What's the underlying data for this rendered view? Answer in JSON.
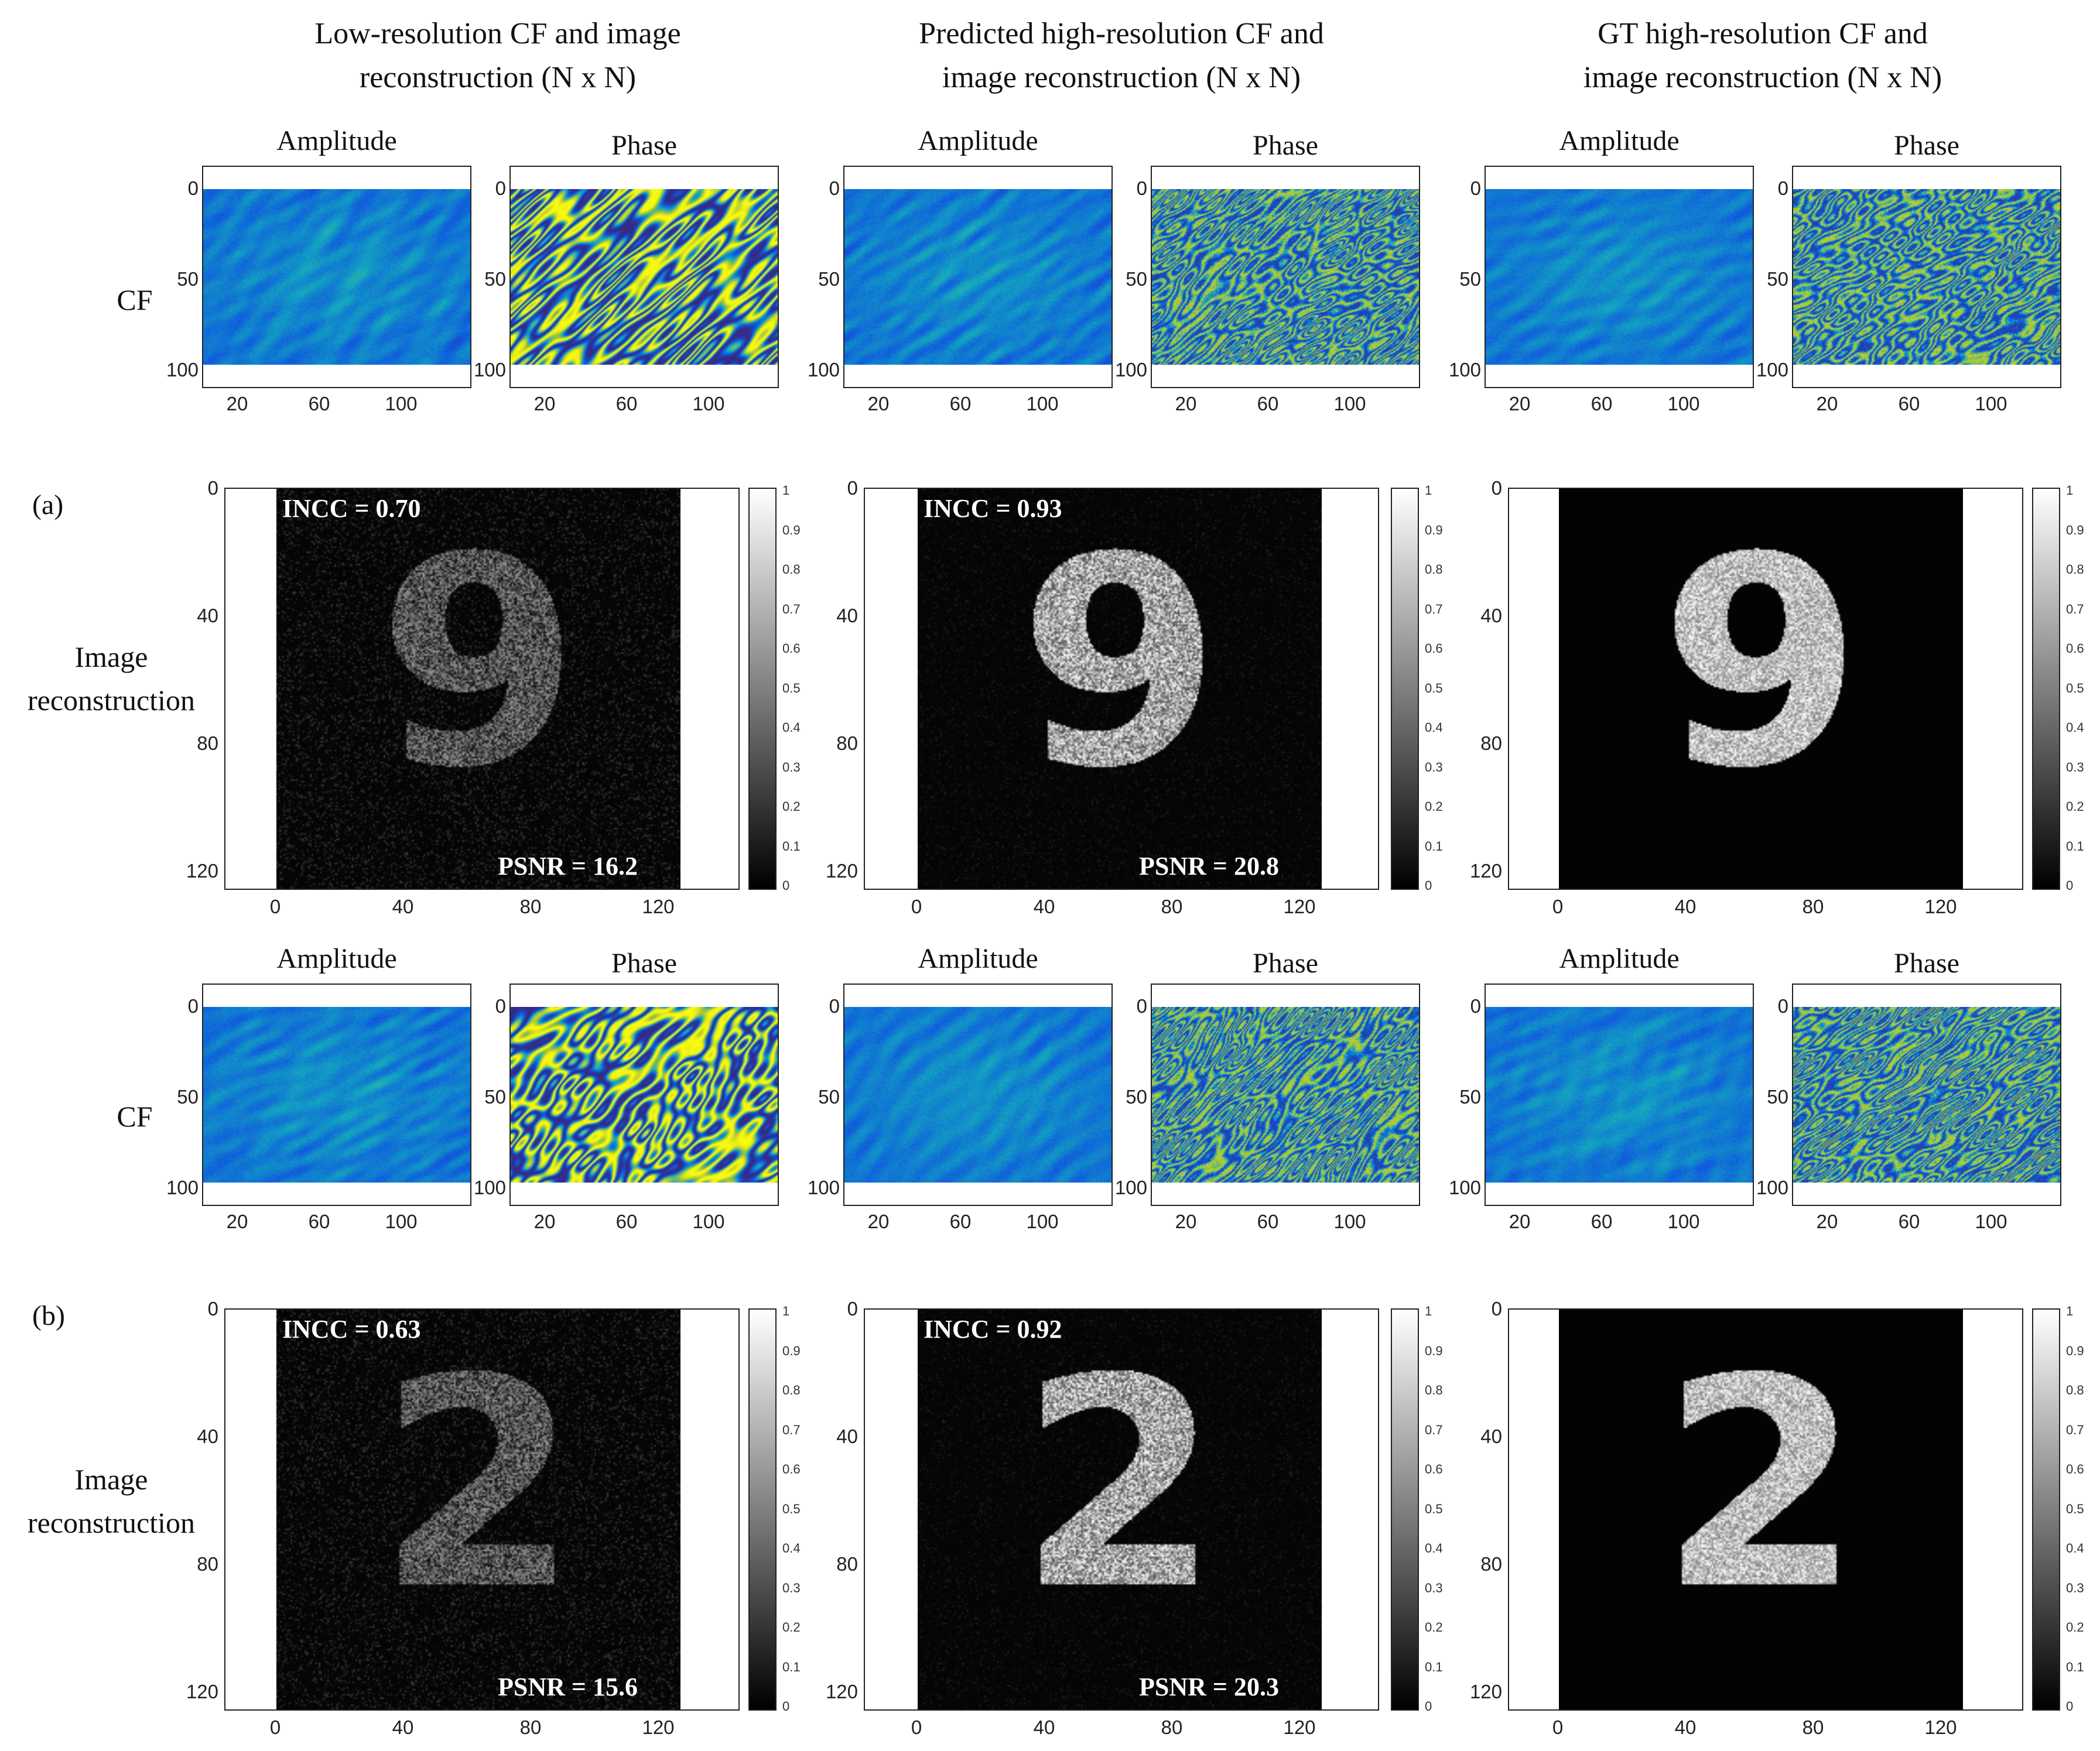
{
  "column_titles": [
    [
      "Low-resolution  CF and image",
      "reconstruction (N x N)"
    ],
    [
      "Predicted high-resolution  CF and",
      "image  reconstruction (N x N)"
    ],
    [
      "GT high-resolution  CF and",
      "image  reconstruction (N x N)"
    ]
  ],
  "row_labels": {
    "cf": "CF",
    "recon": [
      "Image",
      "reconstruction"
    ]
  },
  "panel_labels": [
    "(a)",
    "(b)"
  ],
  "subtitles": {
    "amplitude": "Amplitude",
    "phase": "Phase"
  },
  "cf_ticks": {
    "y": [
      "0",
      "50",
      "100"
    ],
    "x": [
      "20",
      "60",
      "100"
    ]
  },
  "recon_ticks": {
    "y": [
      "0",
      "40",
      "80",
      "120"
    ],
    "x": [
      "0",
      "40",
      "80",
      "120"
    ]
  },
  "colorbar_ticks": [
    "1",
    "0.9",
    "0.8",
    "0.7",
    "0.6",
    "0.5",
    "0.4",
    "0.3",
    "0.2",
    "0.1",
    "0"
  ],
  "metrics": {
    "a": [
      {
        "incc": "INCC = 0.70",
        "psnr": "PSNR = 16.2"
      },
      {
        "incc": "INCC = 0.93",
        "psnr": "PSNR = 20.8"
      },
      {
        "incc": "",
        "psnr": ""
      }
    ],
    "b": [
      {
        "incc": "INCC = 0.63",
        "psnr": "PSNR = 15.6"
      },
      {
        "incc": "INCC = 0.92",
        "psnr": "PSNR = 20.3"
      },
      {
        "incc": "",
        "psnr": ""
      }
    ]
  },
  "digits": {
    "a": "9",
    "b": "2"
  },
  "colors": {
    "amp_low": "#3a2cc0",
    "amp_high": "#2fb8b0",
    "phase_a": "#2fb8b0",
    "phase_b": "#f2e13a",
    "phase_c": "#3a5de0"
  }
}
